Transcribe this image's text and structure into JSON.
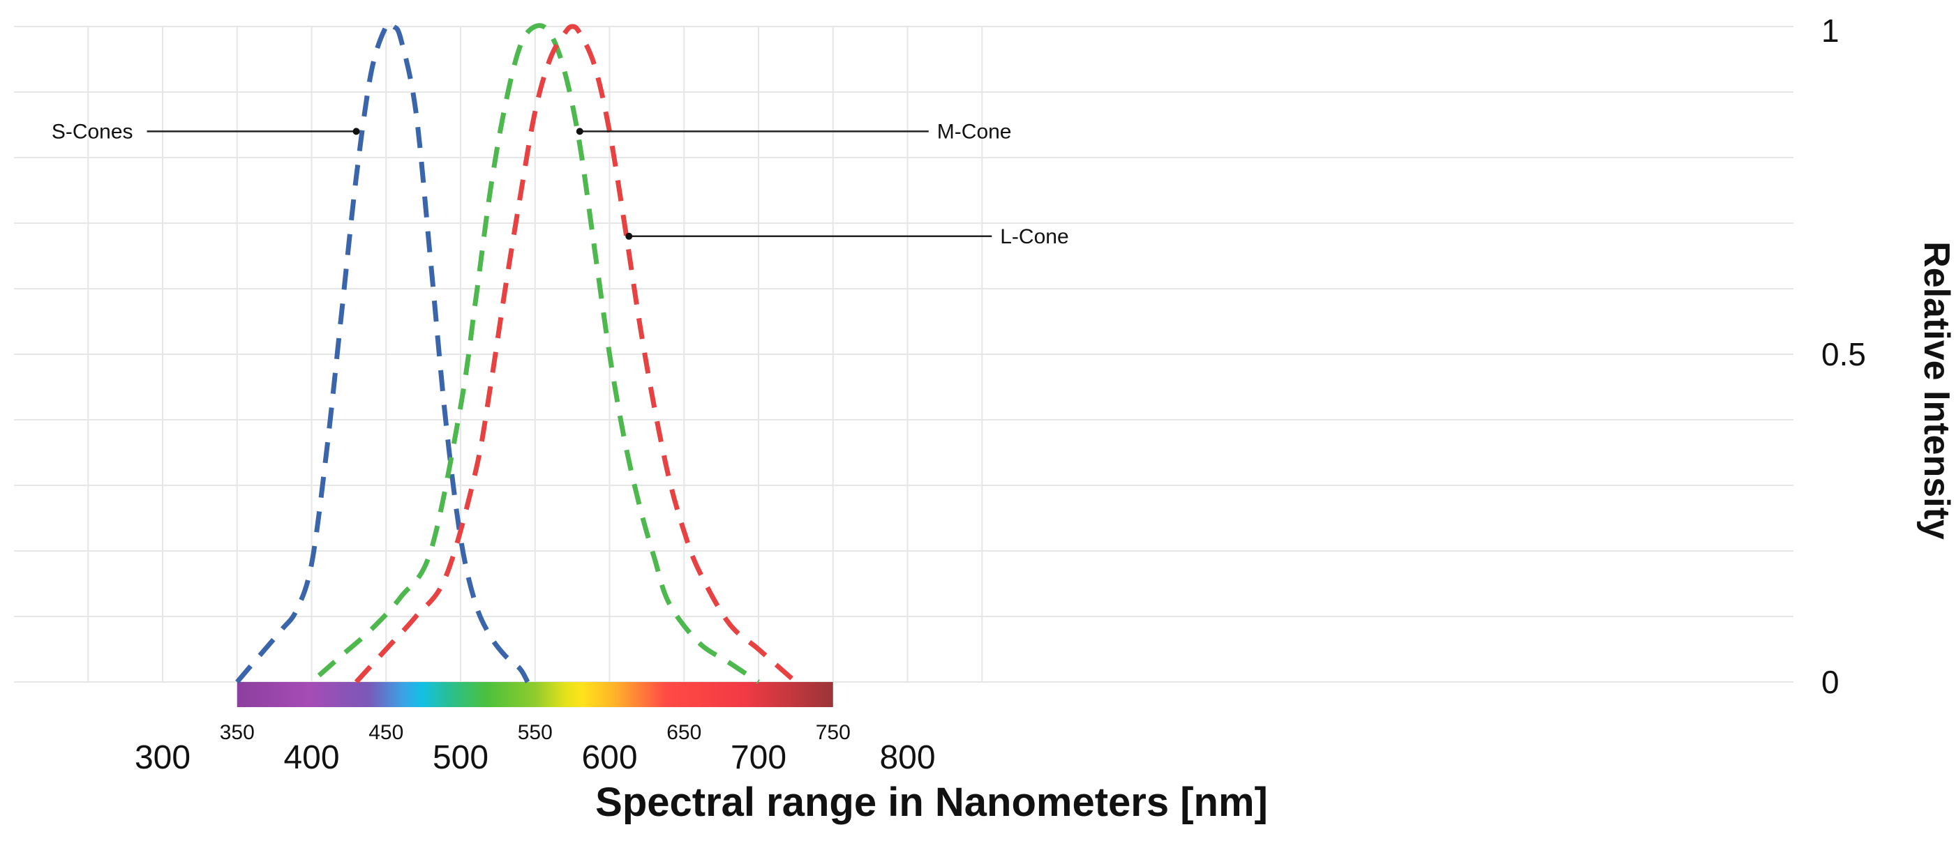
{
  "chart_data": {
    "type": "line",
    "title": "",
    "xlabel": "Spectral range in Nanometers [nm]",
    "ylabel": "Relative Intensity",
    "xlim": [
      250,
      850
    ],
    "ylim": [
      0,
      1
    ],
    "x_ticks": [
      300,
      400,
      500,
      600,
      700,
      800
    ],
    "y_ticks": [
      {
        "value": 0,
        "label": "0"
      },
      {
        "value": 0.5,
        "label": "0.5"
      },
      {
        "value": 1,
        "label": "1"
      }
    ],
    "grid": true,
    "spectrum_bar": {
      "range": [
        350,
        750
      ],
      "labels": [
        350,
        450,
        550,
        650,
        750
      ]
    },
    "series": [
      {
        "name": "S-Cones",
        "color": "#3a65ab",
        "x": [
          350,
          365,
          380,
          390,
          400,
          410,
          420,
          430,
          440,
          450,
          455,
          460,
          470,
          480,
          490,
          500,
          510,
          520,
          530,
          540,
          545
        ],
        "y": [
          0.0,
          0.04,
          0.08,
          0.11,
          0.18,
          0.35,
          0.56,
          0.77,
          0.93,
          1.0,
          1.0,
          0.98,
          0.87,
          0.64,
          0.4,
          0.22,
          0.12,
          0.07,
          0.04,
          0.02,
          0.0
        ]
      },
      {
        "name": "M-Cone",
        "color": "#4db84d",
        "x": [
          405,
          420,
          440,
          460,
          480,
          500,
          510,
          520,
          530,
          540,
          550,
          560,
          570,
          580,
          590,
          600,
          610,
          620,
          630,
          640,
          660,
          680,
          700
        ],
        "y": [
          0.01,
          0.04,
          0.08,
          0.13,
          0.2,
          0.42,
          0.58,
          0.75,
          0.88,
          0.97,
          1.0,
          0.99,
          0.93,
          0.82,
          0.66,
          0.5,
          0.37,
          0.27,
          0.19,
          0.12,
          0.06,
          0.03,
          0.0
        ]
      },
      {
        "name": "L-Cone",
        "color": "#e84141",
        "x": [
          430,
          450,
          470,
          490,
          510,
          520,
          530,
          540,
          550,
          560,
          570,
          575,
          580,
          590,
          600,
          610,
          620,
          630,
          640,
          650,
          660,
          680,
          700,
          720,
          725
        ],
        "y": [
          0.0,
          0.05,
          0.1,
          0.16,
          0.32,
          0.45,
          0.6,
          0.74,
          0.87,
          0.95,
          0.99,
          1.0,
          0.99,
          0.94,
          0.84,
          0.7,
          0.55,
          0.42,
          0.31,
          0.23,
          0.17,
          0.09,
          0.05,
          0.01,
          0.0
        ]
      }
    ],
    "annotations": [
      {
        "text": "S-Cones",
        "x": 430,
        "y": 0.84,
        "side": "left"
      },
      {
        "text": "M-Cone",
        "x": 580,
        "y": 0.84,
        "side": "right"
      },
      {
        "text": "L-Cone",
        "x": 613,
        "y": 0.68,
        "side": "right"
      }
    ]
  }
}
